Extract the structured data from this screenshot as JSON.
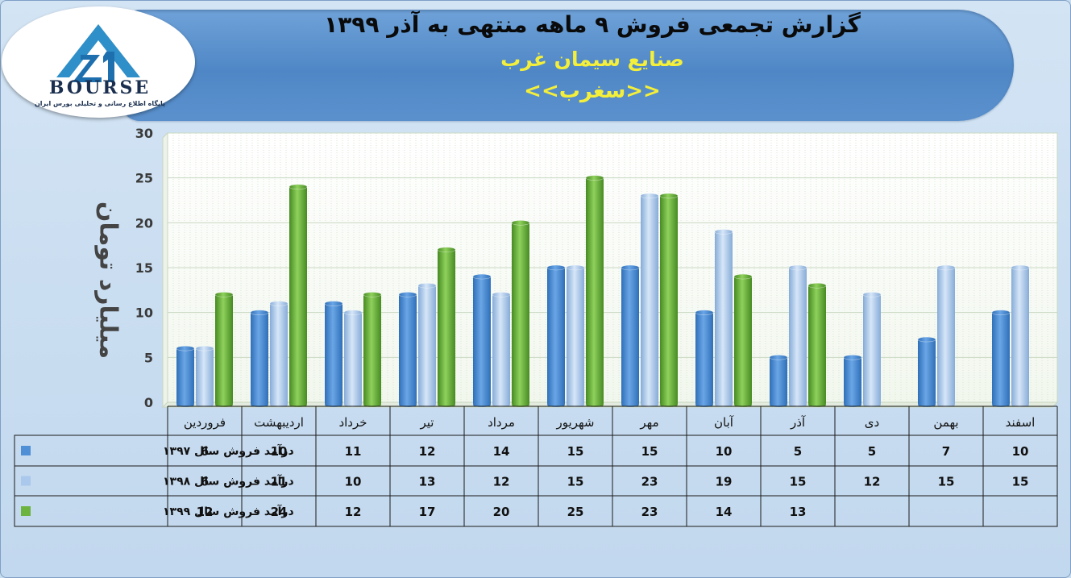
{
  "header": {
    "title": "گزارش تجمعی فروش ۹ ماهه منتهی به آذر ۱۳۹۹",
    "company": "صنایع سیمان غرب",
    "symbol": "<<سغرب>>"
  },
  "logo": {
    "brand": "BOURSE",
    "tagline": "پایگاه اطلاع رسانی و تحلیلی بورس ایران"
  },
  "colors": {
    "s1397": "#4f8fd6",
    "s1398": "#a9c8ec",
    "s1399": "#6cb340"
  },
  "chart_data": {
    "type": "bar",
    "ylabel": "میلیارد تومان",
    "ylim": [
      0,
      30
    ],
    "yticks": [
      0,
      5,
      10,
      15,
      20,
      25,
      30
    ],
    "grid": true,
    "categories": [
      "فروردین",
      "اردیبهشت",
      "خرداد",
      "تیر",
      "مرداد",
      "شهریور",
      "مهر",
      "آبان",
      "آذر",
      "دی",
      "بهمن",
      "اسفند"
    ],
    "series": [
      {
        "name": "درآمد فروش سال ۱۳۹۷",
        "values": [
          6,
          10,
          11,
          12,
          14,
          15,
          15,
          10,
          5,
          5,
          7,
          10
        ]
      },
      {
        "name": "درآمد فروش سال ۱۳۹۸",
        "values": [
          6,
          11,
          10,
          13,
          12,
          15,
          23,
          19,
          15,
          12,
          15,
          15
        ]
      },
      {
        "name": "درآمد فروش سال ۱۳۹۹",
        "values": [
          12,
          24,
          12,
          17,
          20,
          25,
          23,
          14,
          13,
          null,
          null,
          null
        ]
      }
    ]
  }
}
